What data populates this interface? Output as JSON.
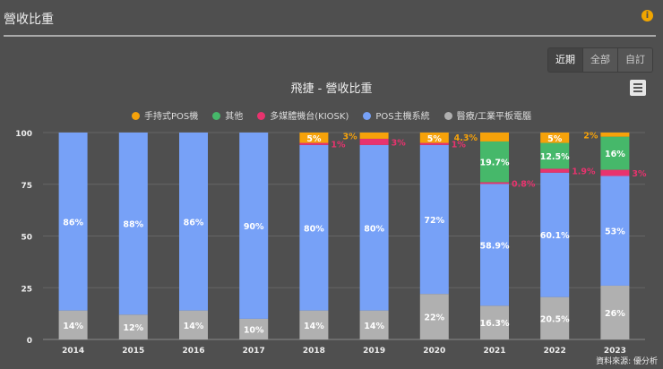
{
  "header": {
    "title": "營收比重",
    "info_icon": "info-icon"
  },
  "range_buttons": [
    "近期",
    "全部",
    "自訂"
  ],
  "menu_icon": "hamburger-menu-icon",
  "source": "資料來源: 優分析",
  "chart_data": {
    "type": "bar",
    "stacked": true,
    "title": "飛捷 - 營收比重",
    "categories": [
      "2014",
      "2015",
      "2016",
      "2017",
      "2018",
      "2019",
      "2020",
      "2021",
      "2022",
      "2023"
    ],
    "ylim": [
      0,
      100
    ],
    "yticks": [
      0,
      25,
      50,
      75,
      100
    ],
    "grid": true,
    "legend": "top",
    "series": [
      {
        "name": "醫療/工業平板電腦",
        "color": "#b0b0b0",
        "values": [
          14,
          12,
          14,
          10,
          14,
          14,
          22,
          16.3,
          20.5,
          26
        ],
        "labels": [
          "14%",
          "12%",
          "14%",
          "10%",
          "14%",
          "14%",
          "22%",
          "16.3%",
          "20.5%",
          "26%"
        ]
      },
      {
        "name": "POS主機系統",
        "color": "#77a1f7",
        "values": [
          86,
          88,
          86,
          90,
          80,
          80,
          72,
          58.9,
          60.1,
          53
        ],
        "labels": [
          "86%",
          "88%",
          "86%",
          "90%",
          "80%",
          "80%",
          "72%",
          "58.9%",
          "60.1%",
          "53%"
        ]
      },
      {
        "name": "多媒體機台(KIOSK)",
        "color": "#e8336e",
        "values": [
          0,
          0,
          0,
          0,
          1,
          3,
          1,
          0.8,
          1.9,
          3
        ],
        "labels": [
          "",
          "",
          "",
          "",
          "1%",
          "3%",
          "1%",
          "0.8%",
          "1.9%",
          "3%"
        ]
      },
      {
        "name": "其他",
        "color": "#46b86a",
        "values": [
          0,
          0,
          0,
          0,
          0,
          0,
          0,
          19.7,
          12.5,
          16
        ],
        "labels": [
          "",
          "",
          "",
          "",
          "",
          "",
          "",
          "19.7%",
          "12.5%",
          "16%"
        ]
      },
      {
        "name": "手持式POS機",
        "color": "#f6a20a",
        "values": [
          0,
          0,
          0,
          0,
          5,
          3,
          5,
          4.3,
          5,
          2
        ],
        "labels": [
          "",
          "",
          "",
          "",
          "5%",
          "3%",
          "5%",
          "4.3%",
          "5%",
          "2%"
        ]
      }
    ],
    "legend_order": [
      4,
      3,
      2,
      1,
      0
    ]
  }
}
